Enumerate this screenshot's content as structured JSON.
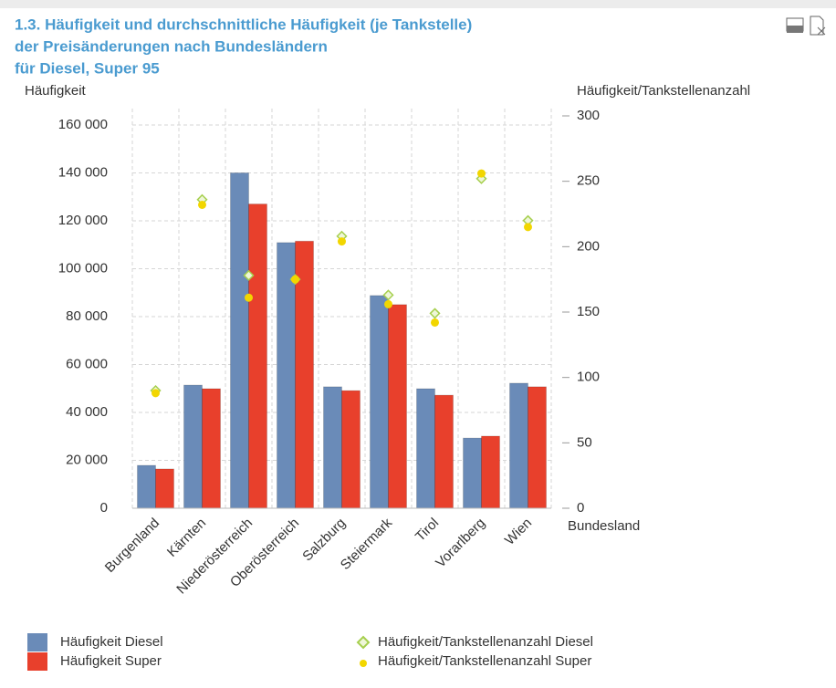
{
  "chart_data": {
    "type": "bar",
    "title": [
      "1.3. Häufigkeit und durchschnittliche Häufigkeit (je Tankstelle)",
      "der Preisänderungen nach Bundesländern",
      "für Diesel, Super 95"
    ],
    "y_label": "Häufigkeit",
    "y2_label": "Häufigkeit/Tankstellenanzahl",
    "x_label": "Bundesland",
    "categories": [
      "Burgenland",
      "Kärnten",
      "Niederösterreich",
      "Oberösterreich",
      "Salzburg",
      "Steiermark",
      "Tirol",
      "Vorarlberg",
      "Wien"
    ],
    "series": [
      {
        "name": "Häufigkeit Diesel",
        "type": "bar",
        "color": "#6a8bb8",
        "values": [
          17900,
          51400,
          140000,
          110900,
          50700,
          88800,
          49900,
          29300,
          52200
        ]
      },
      {
        "name": "Häufigkeit Super",
        "type": "bar",
        "color": "#e8402c",
        "values": [
          16400,
          49900,
          127000,
          111500,
          49100,
          85000,
          47200,
          30100,
          50700
        ]
      },
      {
        "name": "Häufigkeit/Tankstellenanzahl Diesel",
        "type": "diamond",
        "axis": "y2",
        "color": "#a6cf4e",
        "values": [
          90,
          236,
          178,
          175,
          208,
          163,
          149,
          252,
          220
        ]
      },
      {
        "name": "Häufigkeit/Tankstellenanzahl Super",
        "type": "dot",
        "axis": "y2",
        "color": "#f2d600",
        "values": [
          88,
          232,
          161,
          175,
          204,
          156,
          142,
          256,
          215
        ]
      }
    ],
    "ylim": [
      0,
      163800
    ],
    "yticks": [
      {
        "value": 0,
        "label": "0"
      },
      {
        "value": 20000,
        "label": "20 000"
      },
      {
        "value": 40000,
        "label": "40 000"
      },
      {
        "value": 60000,
        "label": "60 000"
      },
      {
        "value": 80000,
        "label": "80 000"
      },
      {
        "value": 100000,
        "label": "100 000"
      },
      {
        "value": 120000,
        "label": "120 000"
      },
      {
        "value": 140000,
        "label": "140 000"
      },
      {
        "value": 160000,
        "label": "160 000"
      }
    ],
    "y2lim": [
      0,
      300
    ],
    "y2ticks": [
      0,
      50,
      100,
      150,
      200,
      250,
      300
    ],
    "grid": true
  }
}
